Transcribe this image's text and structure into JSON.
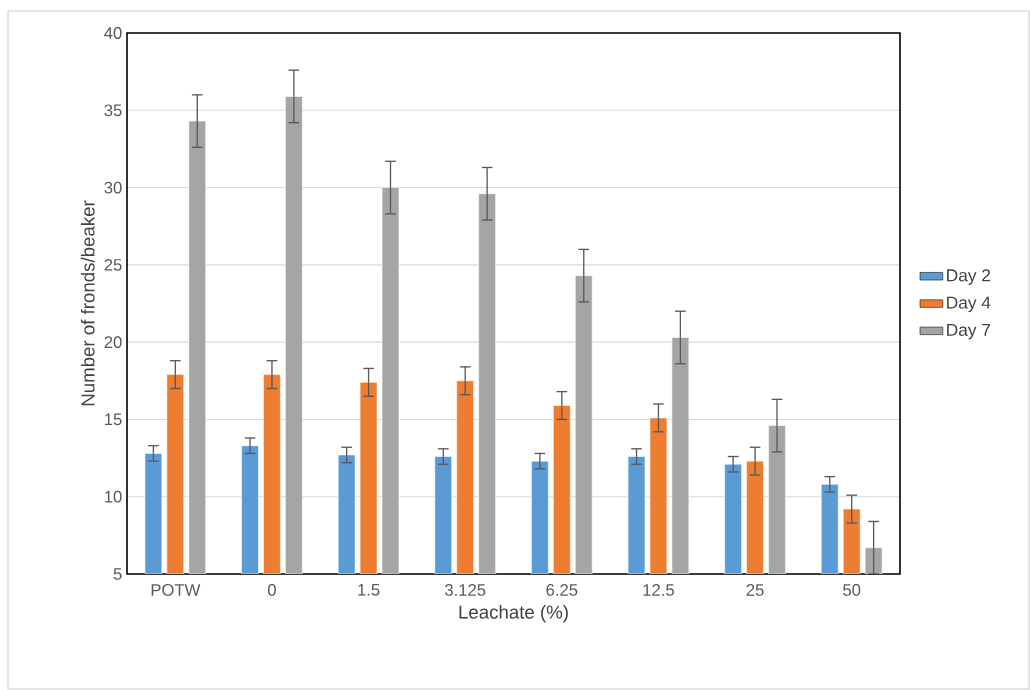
{
  "chart_data": {
    "type": "bar",
    "xlabel": "Leachate (%)",
    "ylabel": "Number of fronds/beaker",
    "categories": [
      "POTW",
      "0",
      "1.5",
      "3.125",
      "6.25",
      "12.5",
      "25",
      "50"
    ],
    "series": [
      {
        "name": "Day 2",
        "color": "#5b9bd5",
        "values": [
          12.8,
          13.3,
          12.7,
          12.6,
          12.3,
          12.6,
          12.1,
          10.8
        ],
        "errors": [
          0.5,
          0.5,
          0.5,
          0.5,
          0.5,
          0.5,
          0.5,
          0.5
        ]
      },
      {
        "name": "Day 4",
        "color": "#ed7d31",
        "values": [
          17.9,
          17.9,
          17.4,
          17.5,
          15.9,
          15.1,
          12.3,
          9.2
        ],
        "errors": [
          0.9,
          0.9,
          0.9,
          0.9,
          0.9,
          0.9,
          0.9,
          0.9
        ]
      },
      {
        "name": "Day 7",
        "color": "#a5a5a5",
        "values": [
          34.3,
          35.9,
          30.0,
          29.6,
          24.3,
          20.3,
          14.6,
          6.7
        ],
        "errors": [
          1.7,
          1.7,
          1.7,
          1.7,
          1.7,
          1.7,
          1.7,
          1.7
        ]
      }
    ],
    "ylim": [
      5,
      40
    ],
    "yticks": [
      5,
      10,
      15,
      20,
      25,
      30,
      35,
      40
    ],
    "grid": "y",
    "legend": "right"
  }
}
